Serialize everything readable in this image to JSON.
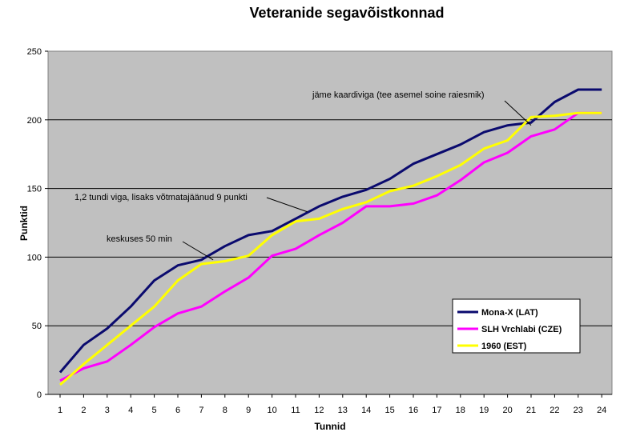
{
  "chart_data": {
    "type": "line",
    "title": "Veteranide segavõistkonnad",
    "xlabel": "Tunnid",
    "ylabel": "Punktid",
    "categories": [
      "1",
      "2",
      "3",
      "4",
      "5",
      "6",
      "7",
      "8",
      "9",
      "10",
      "11",
      "12",
      "13",
      "14",
      "15",
      "16",
      "17",
      "18",
      "19",
      "20",
      "21",
      "22",
      "23",
      "24"
    ],
    "yticks": [
      "0",
      "50",
      "100",
      "150",
      "200",
      "250"
    ],
    "ylim": [
      0,
      250
    ],
    "grid": true,
    "legend_position": "bottom-right",
    "series": [
      {
        "name": "Mona-X (LAT)",
        "color": "#0a0a6e",
        "values": [
          16,
          36,
          48,
          64,
          83,
          94,
          98,
          108,
          116,
          119,
          128,
          137,
          144,
          149,
          157,
          168,
          175,
          182,
          191,
          196,
          198,
          213,
          222,
          222
        ]
      },
      {
        "name": "SLH Vrchlabi (CZE)",
        "color": "#ff00ff",
        "values": [
          10,
          19,
          24,
          36,
          49,
          59,
          64,
          75,
          85,
          101,
          106,
          116,
          125,
          137,
          137,
          139,
          145,
          156,
          169,
          176,
          188,
          193,
          205,
          205
        ]
      },
      {
        "name": "1960 (EST)",
        "color": "#ffff00",
        "values": [
          7,
          22,
          36,
          50,
          64,
          83,
          95,
          97,
          101,
          116,
          126,
          128,
          135,
          140,
          148,
          152,
          159,
          167,
          179,
          185,
          202,
          203,
          205,
          205
        ]
      }
    ],
    "annotations": [
      {
        "text": "jäme kaardiviga (tee asemel soine raiesmik)",
        "target_x": "21",
        "target_y": 196
      },
      {
        "text": "1,2 tundi viga, lisaks võtmatajäänud 9 punkti",
        "target_x": "11.5",
        "target_y": 133
      },
      {
        "text": "keskuses 50 min",
        "target_x": "7.5",
        "target_y": 98
      }
    ]
  }
}
